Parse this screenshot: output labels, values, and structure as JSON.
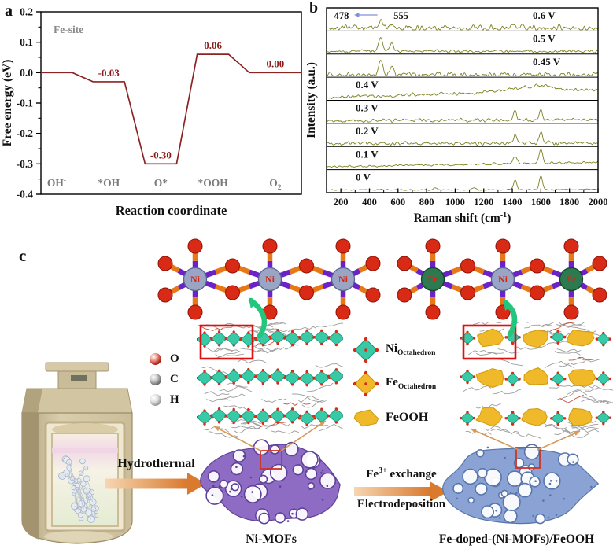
{
  "panel_labels": {
    "a": "a",
    "b": "b",
    "c": "c"
  },
  "chart_data": [
    {
      "type": "line",
      "subtype": "free-energy-steps",
      "panel": "a",
      "annotation": "Fe-site",
      "xlabel": "Reaction coordinate",
      "ylabel": "Free energy (eV)",
      "ylim": [
        -0.4,
        0.2
      ],
      "yticks": [
        0.2,
        0.1,
        0.0,
        -0.1,
        -0.2,
        -0.3,
        -0.4
      ],
      "categories": [
        {
          "text": "OH",
          "sup": "-"
        },
        {
          "text": "*OH"
        },
        {
          "text": "O*"
        },
        {
          "text": "*OOH"
        },
        {
          "text": "O",
          "sub": "2"
        }
      ],
      "values": [
        0.0,
        -0.03,
        -0.3,
        0.06,
        0.0
      ],
      "value_labels": [
        "",
        "-0.03",
        "-0.30",
        "0.06",
        "0.00"
      ],
      "line_color": "#8b2323",
      "value_label_color": "#8b1a1a",
      "category_color": "#7a7a7a",
      "grid": false
    },
    {
      "type": "line",
      "subtype": "stacked-raman-spectra",
      "panel": "b",
      "xlabel_pre": "Raman shift (cm",
      "xlabel_sup": "-1",
      "xlabel_post": ")",
      "ylabel": "Intensity (a.u.)",
      "xlim": [
        100,
        2000
      ],
      "xticks": [
        200,
        400,
        600,
        800,
        1000,
        1200,
        1400,
        1600,
        1800,
        2000
      ],
      "line_color": "#7d8222",
      "annotation_arrow_color": "#8090d8",
      "annotations": [
        {
          "text": "478",
          "x": 478,
          "arrow": true
        },
        {
          "text": "555",
          "x": 555,
          "arrow": false
        }
      ],
      "series": [
        {
          "name": "0.6 V",
          "label_side": "right",
          "noise": 0.1,
          "slope": 0.02,
          "peaks": [
            [
              478,
              0.5,
              16
            ],
            [
              555,
              0.22,
              14
            ]
          ]
        },
        {
          "name": "0.5 V",
          "label_side": "right",
          "noise": 0.045,
          "slope": 0.0,
          "peaks": [
            [
              478,
              0.82,
              14
            ],
            [
              555,
              0.42,
              13
            ]
          ]
        },
        {
          "name": "0.45 V",
          "label_side": "right",
          "noise": 0.08,
          "slope": 0.0,
          "peaks": [
            [
              478,
              0.85,
              14
            ],
            [
              555,
              0.48,
              13
            ]
          ]
        },
        {
          "name": "0.4 V",
          "label_side": "left",
          "noise": 0.05,
          "slope": 0.5,
          "peaks": [
            [
              1480,
              0.22,
              180
            ],
            [
              1610,
              0.18,
              70
            ]
          ]
        },
        {
          "name": "0.3 V",
          "label_side": "left",
          "noise": 0.055,
          "slope": 0.05,
          "peaks": [
            [
              1420,
              0.5,
              12
            ],
            [
              1600,
              0.55,
              12
            ]
          ]
        },
        {
          "name": "0.2 V",
          "label_side": "left",
          "noise": 0.06,
          "slope": 0.05,
          "peaks": [
            [
              1420,
              0.5,
              12
            ],
            [
              1600,
              0.62,
              12
            ]
          ]
        },
        {
          "name": "0.1 V",
          "label_side": "left",
          "noise": 0.035,
          "slope": 0.3,
          "peaks": [
            [
              1420,
              0.45,
              12
            ],
            [
              1600,
              0.85,
              12
            ]
          ]
        },
        {
          "name": "0 V",
          "label_side": "left",
          "noise": 0.02,
          "slope": 0.02,
          "peaks": [
            [
              860,
              0.12,
              12
            ],
            [
              1130,
              0.12,
              12
            ],
            [
              1420,
              0.6,
              11
            ],
            [
              1600,
              0.82,
              11
            ]
          ]
        }
      ]
    }
  ],
  "panel_c": {
    "atom_legend": [
      {
        "label": "O",
        "color": "#d92a16"
      },
      {
        "label": "C",
        "color": "#8f8f8f"
      },
      {
        "label": "H",
        "color": "#c9c9c9"
      }
    ],
    "unit_legend": [
      {
        "main": "Ni",
        "sub": "Octahedron",
        "shape": "diamond",
        "color": "#38c9a6"
      },
      {
        "main": "Fe",
        "sub": "Octahedron",
        "shape": "diamond",
        "color": "#f0b929"
      },
      {
        "main": "FeOOH",
        "sub": "",
        "shape": "blob",
        "color": "#f0b929"
      }
    ],
    "step1_label": "Hydrothermal",
    "step2_line1": {
      "pre": "Fe",
      "sup": "3+",
      "post": " exchange"
    },
    "step2_line2": "Electrodeposition",
    "product1": "Ni-MOFs",
    "product2": "Fe-doped-(Ni-MOFs)/FeOOH",
    "chain_left": [
      "Ni",
      "Ni",
      "Ni"
    ],
    "chain_right": [
      "Fe",
      "Ni",
      "Fe"
    ],
    "colors": {
      "ni_mof": "#8f6cc4",
      "ni_mof_dark": "#5e4198",
      "fe_mof": "#8aa3d4",
      "fe_mof_dark": "#5876ab",
      "teal": "#38c9a6",
      "gold": "#f0b929",
      "bond_purple": "#6a23c6",
      "bond_orange": "#e67817",
      "oxygen": "#d92a16",
      "metal_ni": "#9aa5c6",
      "metal_fe": "#2d7a50",
      "metal_label": "#d42814",
      "green_arrow": "#22c77d",
      "orange_arrow": "#d97a2e",
      "callout": "#d59a5c",
      "highlight_red": "#dd1111"
    }
  }
}
